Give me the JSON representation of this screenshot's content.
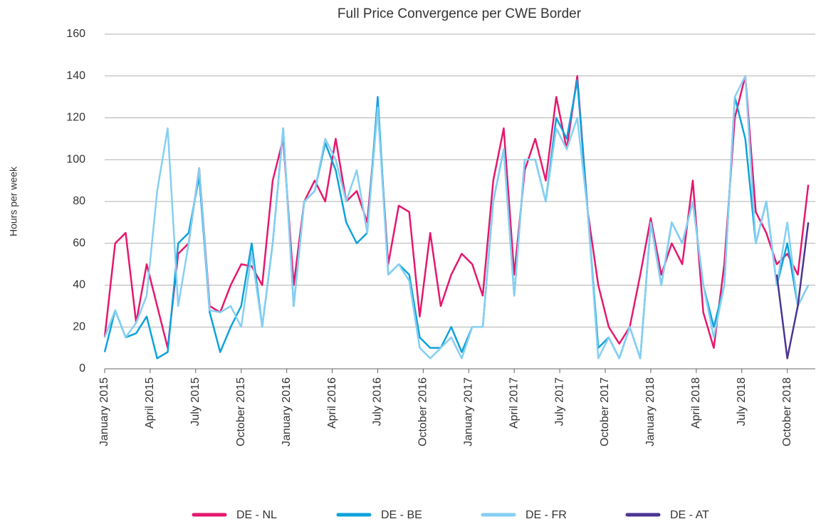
{
  "chart_data": {
    "type": "line",
    "title": "Full Price Convergence per CWE Border",
    "y_label": "Hours per week",
    "x": [
      0,
      3,
      6,
      9,
      12,
      15,
      18,
      21,
      24,
      27,
      30,
      33,
      36,
      39,
      42,
      45,
      48,
      51,
      54,
      57,
      60,
      63,
      66,
      69,
      72,
      75,
      78,
      81,
      84,
      87,
      90,
      93,
      96,
      99,
      102,
      105,
      108,
      111,
      114,
      117,
      120,
      123,
      126,
      129,
      132,
      135,
      138,
      141,
      144,
      147,
      150,
      153,
      156,
      159,
      162,
      165,
      168,
      171,
      174,
      177,
      180,
      183,
      186,
      189,
      192,
      195,
      198,
      201
    ],
    "xlim": [
      0,
      203
    ],
    "xticks": [
      {
        "value": 0,
        "label": "January 2015"
      },
      {
        "value": 13,
        "label": "April 2015"
      },
      {
        "value": 26,
        "label": "July 2015"
      },
      {
        "value": 39,
        "label": "October 2015"
      },
      {
        "value": 52,
        "label": "January 2016"
      },
      {
        "value": 65,
        "label": "April 2016"
      },
      {
        "value": 78,
        "label": "July 2016"
      },
      {
        "value": 91,
        "label": "October 2016"
      },
      {
        "value": 104,
        "label": "January 2017"
      },
      {
        "value": 117,
        "label": "April 2017"
      },
      {
        "value": 130,
        "label": "July 2017"
      },
      {
        "value": 143,
        "label": "October 2017"
      },
      {
        "value": 156,
        "label": "January 2018"
      },
      {
        "value": 169,
        "label": "April 2018"
      },
      {
        "value": 182,
        "label": "July 2018"
      },
      {
        "value": 195,
        "label": "October 2018"
      }
    ],
    "ylim": [
      0,
      160
    ],
    "yticks": [
      0,
      20,
      40,
      60,
      80,
      100,
      120,
      140,
      160
    ],
    "grid": true,
    "series": [
      {
        "name": "DE - NL",
        "color": "#e5176e",
        "values": [
          15,
          60,
          65,
          22,
          50,
          30,
          10,
          55,
          60,
          96,
          30,
          27,
          40,
          50,
          49,
          40,
          90,
          110,
          40,
          80,
          90,
          80,
          110,
          80,
          85,
          70,
          125,
          50,
          78,
          75,
          25,
          65,
          30,
          45,
          55,
          50,
          35,
          90,
          115,
          45,
          95,
          110,
          90,
          130,
          105,
          140,
          75,
          40,
          20,
          12,
          20,
          45,
          72,
          45,
          60,
          50,
          90,
          27,
          10,
          50,
          120,
          140,
          75,
          65,
          50,
          55,
          45,
          88
        ]
      },
      {
        "name": "DE - BE",
        "color": "#0ea2dc",
        "values": [
          8,
          28,
          15,
          17,
          25,
          5,
          8,
          60,
          65,
          92,
          27,
          8,
          20,
          30,
          60,
          20,
          60,
          115,
          30,
          80,
          85,
          108,
          95,
          70,
          60,
          65,
          130,
          45,
          50,
          45,
          15,
          10,
          10,
          20,
          8,
          20,
          20,
          80,
          105,
          35,
          100,
          100,
          80,
          120,
          110,
          138,
          75,
          10,
          15,
          5,
          20,
          5,
          70,
          40,
          70,
          60,
          80,
          40,
          20,
          40,
          130,
          110,
          60,
          80,
          40,
          60,
          30,
          40
        ]
      },
      {
        "name": "DE - FR",
        "color": "#86cff2",
        "values": [
          15,
          28,
          15,
          22,
          35,
          85,
          115,
          30,
          60,
          96,
          28,
          27,
          30,
          20,
          55,
          20,
          60,
          115,
          30,
          80,
          85,
          110,
          100,
          80,
          95,
          65,
          125,
          45,
          50,
          42,
          10,
          5,
          10,
          15,
          5,
          20,
          20,
          80,
          105,
          35,
          100,
          100,
          80,
          115,
          105,
          120,
          75,
          5,
          15,
          5,
          20,
          5,
          70,
          40,
          70,
          60,
          80,
          40,
          15,
          40,
          130,
          140,
          60,
          80,
          40,
          70,
          30,
          40
        ]
      },
      {
        "name": "DE - AT",
        "color": "#4b3591",
        "values": [
          null,
          null,
          null,
          null,
          null,
          null,
          null,
          null,
          null,
          null,
          null,
          null,
          null,
          null,
          null,
          null,
          null,
          null,
          null,
          null,
          null,
          null,
          null,
          null,
          null,
          null,
          null,
          null,
          null,
          null,
          null,
          null,
          null,
          null,
          null,
          null,
          null,
          null,
          null,
          null,
          null,
          null,
          null,
          null,
          null,
          null,
          null,
          null,
          null,
          null,
          null,
          null,
          null,
          null,
          null,
          null,
          null,
          null,
          null,
          null,
          null,
          null,
          null,
          null,
          45,
          5,
          30,
          70
        ]
      }
    ]
  }
}
